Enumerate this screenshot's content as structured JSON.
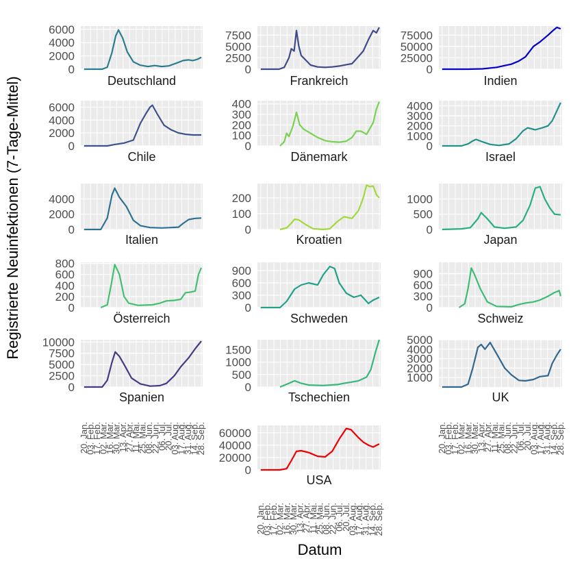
{
  "figure": {
    "ylabel": "Registrierte Neuinfektionen (7-Tage-Mittel)",
    "xlabel": "Datum"
  },
  "x_tick_labels": [
    "20. Jan.",
    "03. Feb.",
    "17. Feb.",
    "02. Mar.",
    "16. Mar.",
    "30. Mar.",
    "13. Apr.",
    "27. Apr.",
    "11. Mai.",
    "25. Mai.",
    "08. Jun.",
    "22. Jun.",
    "06. Jul.",
    "20. Jul.",
    "03. Aug.",
    "17. Aug.",
    "31. Aug.",
    "14. Sep.",
    "28. Sep."
  ],
  "chart_data": [
    {
      "type": "line",
      "panel": "Deutschland",
      "color": "#2a7c8e",
      "ylim": [
        0,
        6500
      ],
      "yticks": [
        0,
        2000,
        4000,
        6000
      ],
      "yticklabels": [
        "0",
        "2000",
        "4000",
        "6000"
      ],
      "x": [
        "2020-01-20",
        "2020-02-28",
        "2020-03-10",
        "2020-03-20",
        "2020-03-28",
        "2020-04-03",
        "2020-04-12",
        "2020-04-22",
        "2020-05-05",
        "2020-05-20",
        "2020-06-05",
        "2020-06-20",
        "2020-07-05",
        "2020-07-20",
        "2020-08-05",
        "2020-08-20",
        "2020-09-01",
        "2020-09-10",
        "2020-09-20",
        "2020-09-28"
      ],
      "y": [
        0,
        0,
        300,
        2500,
        5000,
        5900,
        4700,
        2600,
        1100,
        600,
        400,
        550,
        400,
        500,
        900,
        1300,
        1400,
        1300,
        1500,
        1800
      ]
    },
    {
      "type": "line",
      "panel": "Frankreich",
      "color": "#3e4a89",
      "ylim": [
        0,
        9500
      ],
      "yticks": [
        0,
        2500,
        5000,
        7500
      ],
      "yticklabels": [
        "0",
        "2500",
        "5000",
        "7500"
      ],
      "x": [
        "2020-01-20",
        "2020-02-28",
        "2020-03-10",
        "2020-03-20",
        "2020-03-25",
        "2020-03-31",
        "2020-04-05",
        "2020-04-10",
        "2020-04-15",
        "2020-04-20",
        "2020-05-05",
        "2020-05-20",
        "2020-06-05",
        "2020-06-20",
        "2020-07-05",
        "2020-07-20",
        "2020-08-01",
        "2020-08-15",
        "2020-08-25",
        "2020-09-05",
        "2020-09-15",
        "2020-09-22",
        "2020-09-28"
      ],
      "y": [
        0,
        0,
        400,
        2500,
        4500,
        4000,
        8500,
        5000,
        3000,
        2500,
        900,
        500,
        400,
        500,
        700,
        1000,
        1200,
        2800,
        4000,
        6500,
        8500,
        8000,
        9200
      ]
    },
    {
      "type": "line",
      "panel": "Indien",
      "color": "#0000cd",
      "ylim": [
        0,
        95000
      ],
      "yticks": [
        0,
        25000,
        50000,
        75000
      ],
      "yticklabels": [
        "0",
        "25000",
        "50000",
        "75000"
      ],
      "x": [
        "2020-01-20",
        "2020-03-15",
        "2020-04-15",
        "2020-05-15",
        "2020-06-01",
        "2020-06-15",
        "2020-07-01",
        "2020-07-15",
        "2020-08-01",
        "2020-08-15",
        "2020-09-01",
        "2020-09-15",
        "2020-09-20",
        "2020-09-28"
      ],
      "y": [
        0,
        0,
        800,
        4000,
        8000,
        11000,
        18000,
        27000,
        50000,
        60000,
        75000,
        88000,
        92000,
        89000
      ]
    },
    {
      "type": "line",
      "panel": "Chile",
      "color": "#3b528b",
      "ylim": [
        0,
        7000
      ],
      "yticks": [
        0,
        2000,
        4000,
        6000
      ],
      "yticklabels": [
        "0",
        "2000",
        "4000",
        "6000"
      ],
      "x": [
        "2020-01-20",
        "2020-03-10",
        "2020-03-25",
        "2020-04-15",
        "2020-05-05",
        "2020-05-20",
        "2020-06-01",
        "2020-06-10",
        "2020-06-15",
        "2020-06-25",
        "2020-07-10",
        "2020-07-25",
        "2020-08-10",
        "2020-08-25",
        "2020-09-10",
        "2020-09-28"
      ],
      "y": [
        0,
        0,
        200,
        450,
        900,
        3500,
        5000,
        6000,
        6300,
        5000,
        3200,
        2500,
        2000,
        1800,
        1700,
        1700
      ]
    },
    {
      "type": "line",
      "panel": "Dänemark",
      "color": "#7ad151",
      "ylim": [
        0,
        430
      ],
      "yticks": [
        0,
        100,
        200,
        300,
        400
      ],
      "yticklabels": [
        "0",
        "100",
        "200",
        "300",
        "400"
      ],
      "x": [
        "2020-03-01",
        "2020-03-10",
        "2020-03-15",
        "2020-03-20",
        "2020-03-28",
        "2020-04-05",
        "2020-04-12",
        "2020-04-20",
        "2020-05-05",
        "2020-05-20",
        "2020-06-05",
        "2020-06-20",
        "2020-07-05",
        "2020-07-20",
        "2020-08-01",
        "2020-08-10",
        "2020-08-20",
        "2020-09-01",
        "2020-09-15",
        "2020-09-22",
        "2020-09-28"
      ],
      "y": [
        0,
        40,
        120,
        90,
        180,
        320,
        200,
        160,
        120,
        80,
        50,
        40,
        35,
        45,
        80,
        140,
        140,
        110,
        220,
        350,
        420
      ]
    },
    {
      "type": "line",
      "panel": "Israel",
      "color": "#21908c",
      "ylim": [
        0,
        4500
      ],
      "yticks": [
        0,
        1000,
        2000,
        3000,
        4000
      ],
      "yticklabels": [
        "0",
        "1000",
        "2000",
        "3000",
        "4000"
      ],
      "x": [
        "2020-01-20",
        "2020-03-01",
        "2020-03-15",
        "2020-03-25",
        "2020-04-01",
        "2020-04-15",
        "2020-05-01",
        "2020-05-20",
        "2020-06-10",
        "2020-06-25",
        "2020-07-10",
        "2020-07-20",
        "2020-08-05",
        "2020-08-20",
        "2020-09-01",
        "2020-09-10",
        "2020-09-20",
        "2020-09-28"
      ],
      "y": [
        0,
        0,
        200,
        500,
        650,
        400,
        150,
        50,
        200,
        700,
        1500,
        1800,
        1600,
        1800,
        2000,
        2500,
        3500,
        4300
      ]
    },
    {
      "type": "line",
      "panel": "Italien",
      "color": "#2c728e",
      "ylim": [
        0,
        6000
      ],
      "yticks": [
        0,
        2000,
        4000
      ],
      "yticklabels": [
        "0",
        "2000",
        "4000"
      ],
      "x": [
        "2020-01-20",
        "2020-02-25",
        "2020-03-10",
        "2020-03-20",
        "2020-03-26",
        "2020-04-05",
        "2020-04-20",
        "2020-05-05",
        "2020-05-20",
        "2020-06-10",
        "2020-07-05",
        "2020-07-25",
        "2020-08-10",
        "2020-08-20",
        "2020-09-01",
        "2020-09-15",
        "2020-09-28"
      ],
      "y": [
        0,
        0,
        1500,
        4500,
        5400,
        4200,
        3000,
        1200,
        500,
        250,
        200,
        250,
        300,
        800,
        1300,
        1450,
        1500
      ]
    },
    {
      "type": "line",
      "panel": "Kroatien",
      "color": "#a0da39",
      "ylim": [
        0,
        290
      ],
      "yticks": [
        0,
        100,
        200
      ],
      "yticklabels": [
        "0",
        "100",
        "200"
      ],
      "x": [
        "2020-03-01",
        "2020-03-15",
        "2020-03-25",
        "2020-04-01",
        "2020-04-10",
        "2020-04-25",
        "2020-05-10",
        "2020-06-01",
        "2020-06-15",
        "2020-07-01",
        "2020-07-15",
        "2020-08-01",
        "2020-08-15",
        "2020-08-25",
        "2020-09-01",
        "2020-09-08",
        "2020-09-15",
        "2020-09-22",
        "2020-09-28"
      ],
      "y": [
        0,
        10,
        40,
        65,
        60,
        30,
        5,
        0,
        5,
        50,
        80,
        70,
        120,
        200,
        280,
        270,
        275,
        220,
        200
      ]
    },
    {
      "type": "line",
      "panel": "Japan",
      "color": "#28ae80",
      "ylim": [
        0,
        1500
      ],
      "yticks": [
        0,
        500,
        1000
      ],
      "yticklabels": [
        "0",
        "500",
        "1000"
      ],
      "x": [
        "2020-01-20",
        "2020-03-01",
        "2020-03-20",
        "2020-04-05",
        "2020-04-12",
        "2020-04-25",
        "2020-05-10",
        "2020-06-01",
        "2020-06-25",
        "2020-07-10",
        "2020-07-25",
        "2020-08-05",
        "2020-08-15",
        "2020-08-25",
        "2020-09-05",
        "2020-09-15",
        "2020-09-28"
      ],
      "y": [
        0,
        20,
        60,
        350,
        550,
        350,
        80,
        40,
        80,
        300,
        800,
        1350,
        1400,
        1000,
        700,
        500,
        480
      ]
    },
    {
      "type": "line",
      "panel": "Österreich",
      "color": "#44bf70",
      "ylim": [
        0,
        820
      ],
      "yticks": [
        0,
        200,
        400,
        600,
        800
      ],
      "yticklabels": [
        "0",
        "200",
        "400",
        "600",
        "800"
      ],
      "x": [
        "2020-02-25",
        "2020-03-10",
        "2020-03-18",
        "2020-03-26",
        "2020-04-05",
        "2020-04-15",
        "2020-04-25",
        "2020-05-15",
        "2020-06-15",
        "2020-07-01",
        "2020-07-15",
        "2020-08-01",
        "2020-08-15",
        "2020-08-25",
        "2020-09-05",
        "2020-09-15",
        "2020-09-22",
        "2020-09-28"
      ],
      "y": [
        0,
        50,
        400,
        780,
        600,
        200,
        80,
        40,
        50,
        80,
        120,
        130,
        150,
        270,
        280,
        300,
        600,
        720
      ]
    },
    {
      "type": "line",
      "panel": "Schweden",
      "color": "#1fa187",
      "ylim": [
        0,
        1100
      ],
      "yticks": [
        0,
        300,
        600,
        900
      ],
      "yticklabels": [
        "0",
        "300",
        "600",
        "900"
      ],
      "x": [
        "2020-01-20",
        "2020-03-01",
        "2020-03-15",
        "2020-04-01",
        "2020-04-15",
        "2020-05-01",
        "2020-05-20",
        "2020-06-01",
        "2020-06-15",
        "2020-06-25",
        "2020-07-05",
        "2020-07-20",
        "2020-08-05",
        "2020-08-20",
        "2020-09-05",
        "2020-09-15",
        "2020-09-28"
      ],
      "y": [
        0,
        0,
        150,
        450,
        550,
        600,
        550,
        800,
        1000,
        950,
        600,
        350,
        250,
        300,
        100,
        180,
        250
      ]
    },
    {
      "type": "line",
      "panel": "Schweiz",
      "color": "#3dbc74",
      "ylim": [
        0,
        1200
      ],
      "yticks": [
        0,
        300,
        600,
        900
      ],
      "yticklabels": [
        "0",
        "300",
        "600",
        "900"
      ],
      "x": [
        "2020-02-25",
        "2020-03-08",
        "2020-03-15",
        "2020-03-22",
        "2020-03-28",
        "2020-04-10",
        "2020-04-25",
        "2020-05-15",
        "2020-06-15",
        "2020-07-01",
        "2020-07-15",
        "2020-08-01",
        "2020-08-15",
        "2020-09-01",
        "2020-09-15",
        "2020-09-25",
        "2020-09-28"
      ],
      "y": [
        0,
        100,
        500,
        1050,
        900,
        500,
        150,
        30,
        20,
        80,
        120,
        150,
        200,
        300,
        400,
        450,
        300
      ]
    },
    {
      "type": "line",
      "panel": "Spanien",
      "color": "#443a83",
      "ylim": [
        0,
        10500
      ],
      "yticks": [
        0,
        2500,
        5000,
        7500,
        10000
      ],
      "yticklabels": [
        "0",
        "2500",
        "5000",
        "7500",
        "10000"
      ],
      "x": [
        "2020-01-20",
        "2020-02-28",
        "2020-03-10",
        "2020-03-20",
        "2020-03-27",
        "2020-04-05",
        "2020-04-15",
        "2020-05-01",
        "2020-05-20",
        "2020-06-10",
        "2020-07-01",
        "2020-07-15",
        "2020-08-01",
        "2020-08-15",
        "2020-09-01",
        "2020-09-15",
        "2020-09-28"
      ],
      "y": [
        0,
        0,
        1500,
        5500,
        7800,
        6800,
        5000,
        2000,
        700,
        200,
        300,
        800,
        2500,
        4500,
        6500,
        8500,
        10200
      ]
    },
    {
      "type": "line",
      "panel": "Tschechien",
      "color": "#35b779",
      "ylim": [
        0,
        1900
      ],
      "yticks": [
        0,
        500,
        1000,
        1500
      ],
      "yticklabels": [
        "0",
        "500",
        "1000",
        "1500"
      ],
      "x": [
        "2020-03-01",
        "2020-03-20",
        "2020-04-01",
        "2020-04-15",
        "2020-05-01",
        "2020-06-01",
        "2020-07-01",
        "2020-07-15",
        "2020-08-01",
        "2020-08-15",
        "2020-09-01",
        "2020-09-10",
        "2020-09-20",
        "2020-09-28"
      ],
      "y": [
        0,
        150,
        250,
        150,
        80,
        60,
        100,
        150,
        200,
        250,
        400,
        700,
        1400,
        1900
      ]
    },
    {
      "type": "line",
      "panel": "UK",
      "color": "#31668e",
      "ylim": [
        0,
        5000
      ],
      "yticks": [
        1000,
        2000,
        3000,
        4000,
        5000
      ],
      "yticklabels": [
        "1000",
        "2000",
        "3000",
        "4000",
        "5000"
      ],
      "x": [
        "2020-01-20",
        "2020-03-01",
        "2020-03-15",
        "2020-03-25",
        "2020-04-05",
        "2020-04-12",
        "2020-04-20",
        "2020-05-01",
        "2020-05-15",
        "2020-06-01",
        "2020-06-15",
        "2020-07-01",
        "2020-07-15",
        "2020-08-01",
        "2020-08-15",
        "2020-09-01",
        "2020-09-10",
        "2020-09-20",
        "2020-09-28"
      ],
      "y": [
        0,
        0,
        300,
        2000,
        4200,
        4500,
        4000,
        4700,
        3500,
        2000,
        1300,
        700,
        650,
        800,
        1100,
        1200,
        2500,
        3400,
        4000
      ]
    },
    {
      "type": "line",
      "panel": "USA",
      "color": "#ee0000",
      "ylim": [
        0,
        72000
      ],
      "yticks": [
        0,
        20000,
        40000,
        60000
      ],
      "yticklabels": [
        "0",
        "20000",
        "40000",
        "60000"
      ],
      "x": [
        "2020-01-20",
        "2020-03-01",
        "2020-03-15",
        "2020-03-25",
        "2020-04-05",
        "2020-04-15",
        "2020-05-01",
        "2020-05-20",
        "2020-06-05",
        "2020-06-20",
        "2020-07-05",
        "2020-07-20",
        "2020-07-30",
        "2020-08-15",
        "2020-08-25",
        "2020-09-05",
        "2020-09-15",
        "2020-09-28"
      ],
      "y": [
        0,
        0,
        2000,
        15000,
        30000,
        31000,
        28000,
        22000,
        21000,
        30000,
        50000,
        67000,
        65000,
        52000,
        45000,
        40000,
        37000,
        42000
      ]
    }
  ]
}
